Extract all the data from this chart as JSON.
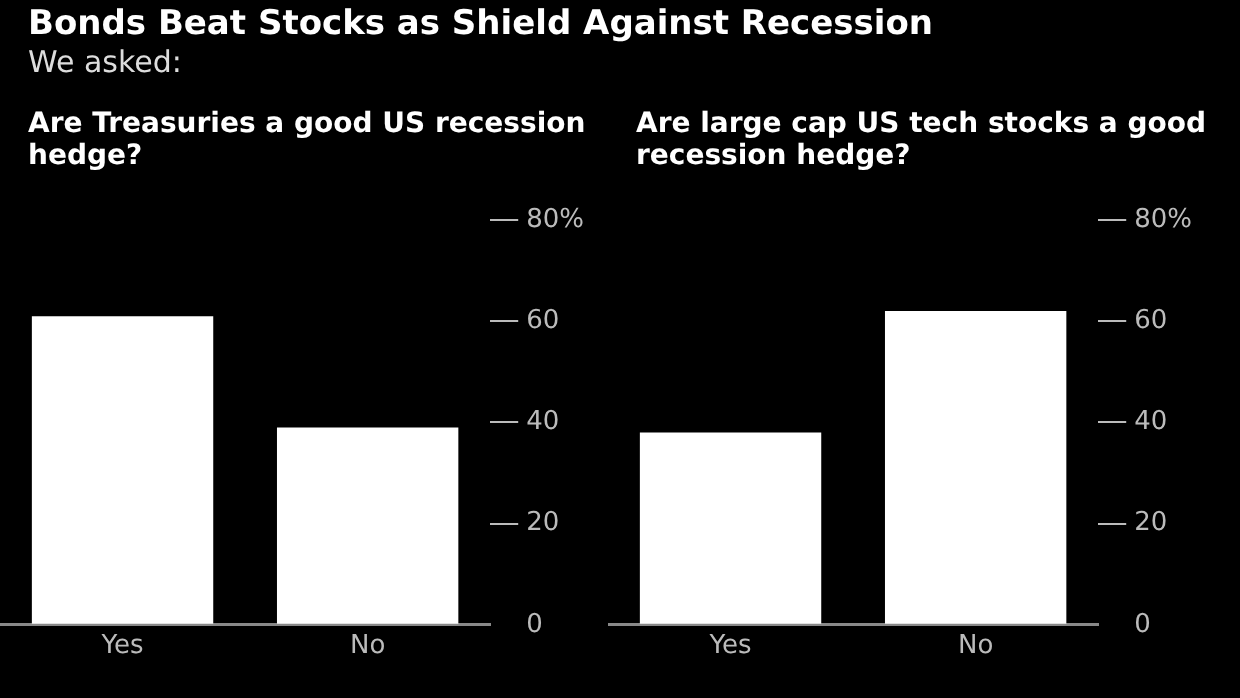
{
  "chart_data": [
    {
      "type": "other",
      "title": "Bonds Beat Stocks as Shield Against Recession",
      "subtitle": "We asked:"
    },
    {
      "type": "bar",
      "title": "Are Treasuries a good US recession hedge?",
      "categories": [
        "Yes",
        "No"
      ],
      "values": [
        61,
        39
      ],
      "color": "#ffffff",
      "ylim": [
        0,
        80
      ],
      "yticks": [
        0,
        20,
        40,
        60,
        {
          "value": 80,
          "label": "80%"
        }
      ]
    },
    {
      "type": "bar",
      "title": "Are large cap US tech stocks a good recession hedge?",
      "categories": [
        "Yes",
        "No"
      ],
      "values": [
        38,
        62
      ],
      "color": "#ffffff",
      "ylim": [
        0,
        80
      ],
      "yticks": [
        0,
        20,
        40,
        60,
        {
          "value": 80,
          "label": "80%"
        }
      ]
    }
  ]
}
